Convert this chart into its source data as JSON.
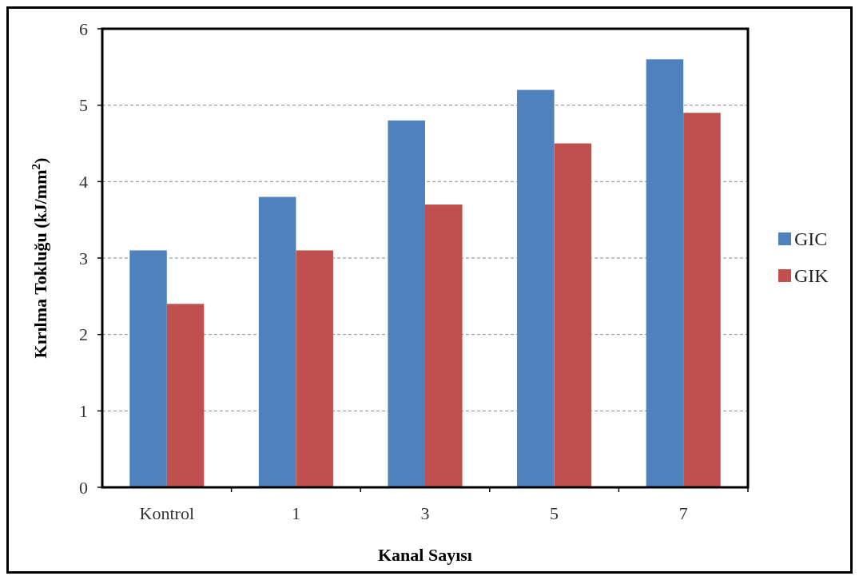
{
  "chart_data": {
    "type": "bar",
    "xlabel": "Kanal Sayısı",
    "ylabel": "Kırılma Tokluğu (kJ/mm$^{2}$)",
    "categories": [
      "Kontrol",
      "1",
      "3",
      "5",
      "7"
    ],
    "series": [
      {
        "name": "GIC",
        "color": "#4f81bd",
        "values": [
          3.1,
          3.8,
          4.8,
          5.2,
          5.6
        ]
      },
      {
        "name": "GIK",
        "color": "#c0504d",
        "values": [
          2.4,
          3.1,
          3.7,
          4.5,
          4.9
        ]
      }
    ],
    "ylim": [
      0,
      6
    ],
    "yticks": [
      0,
      1,
      2,
      3,
      4,
      5,
      6
    ],
    "grid": "y",
    "legend": "right"
  }
}
